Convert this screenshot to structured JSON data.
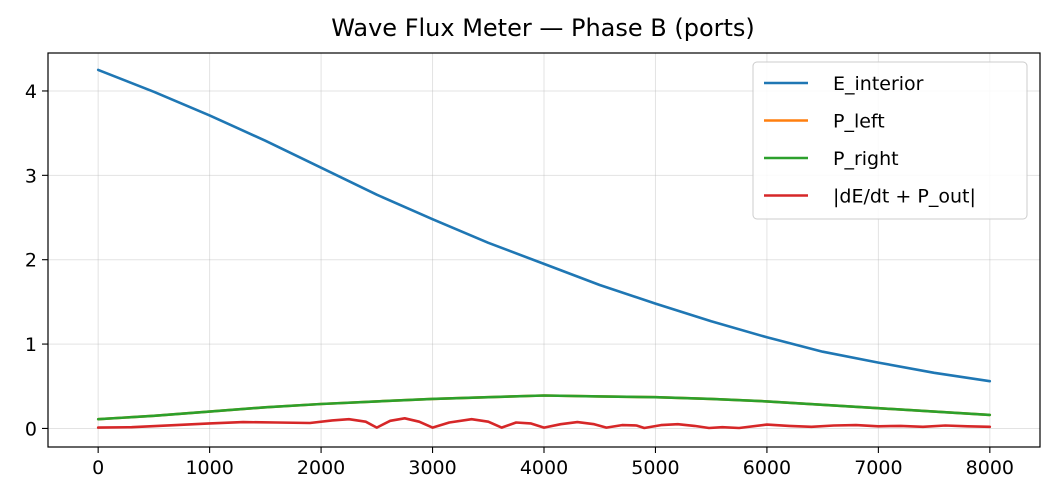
{
  "chart_data": {
    "type": "line",
    "title": "Wave Flux Meter — Phase B (ports)",
    "xlabel": "",
    "ylabel": "",
    "xlim": [
      -450,
      8450
    ],
    "ylim": [
      -0.22,
      4.45
    ],
    "x_ticks": [
      0,
      1000,
      2000,
      3000,
      4000,
      5000,
      6000,
      7000,
      8000
    ],
    "y_ticks": [
      0,
      1,
      2,
      3,
      4
    ],
    "grid": true,
    "legend_position": "top-right",
    "series": [
      {
        "name": "E_interior",
        "color": "#1f77b4",
        "x": [
          0,
          500,
          1000,
          1500,
          2000,
          2500,
          3000,
          3500,
          4000,
          4500,
          5000,
          5500,
          6000,
          6500,
          7000,
          7500,
          8000
        ],
        "y": [
          4.25,
          3.99,
          3.71,
          3.41,
          3.09,
          2.77,
          2.48,
          2.2,
          1.95,
          1.7,
          1.48,
          1.27,
          1.08,
          0.91,
          0.78,
          0.66,
          0.56
        ]
      },
      {
        "name": "P_left",
        "color": "#ff7f0e",
        "x": [
          0,
          500,
          1000,
          1500,
          2000,
          2500,
          3000,
          3500,
          4000,
          4500,
          5000,
          5500,
          6000,
          6500,
          7000,
          7500,
          8000
        ],
        "y": [
          0.11,
          0.15,
          0.2,
          0.25,
          0.29,
          0.32,
          0.35,
          0.37,
          0.39,
          0.38,
          0.37,
          0.35,
          0.32,
          0.28,
          0.24,
          0.2,
          0.16
        ]
      },
      {
        "name": "P_right",
        "color": "#2ca02c",
        "x": [
          0,
          500,
          1000,
          1500,
          2000,
          2500,
          3000,
          3500,
          4000,
          4500,
          5000,
          5500,
          6000,
          6500,
          7000,
          7500,
          8000
        ],
        "y": [
          0.11,
          0.15,
          0.2,
          0.25,
          0.29,
          0.32,
          0.35,
          0.37,
          0.39,
          0.38,
          0.37,
          0.35,
          0.32,
          0.28,
          0.24,
          0.2,
          0.16
        ]
      },
      {
        "name": "|dE/dt + P_out|",
        "color": "#d62728",
        "x": [
          0,
          300,
          700,
          1000,
          1300,
          1600,
          1900,
          2100,
          2250,
          2400,
          2500,
          2620,
          2750,
          2880,
          3000,
          3150,
          3350,
          3500,
          3620,
          3750,
          3880,
          4000,
          4150,
          4300,
          4450,
          4560,
          4700,
          4830,
          4900,
          5050,
          5200,
          5350,
          5480,
          5600,
          5750,
          6000,
          6200,
          6400,
          6600,
          6800,
          7000,
          7200,
          7400,
          7600,
          7800,
          8000
        ],
        "y": [
          0.01,
          0.015,
          0.04,
          0.06,
          0.075,
          0.07,
          0.065,
          0.095,
          0.11,
          0.08,
          0.01,
          0.09,
          0.12,
          0.08,
          0.01,
          0.07,
          0.11,
          0.08,
          0.01,
          0.07,
          0.06,
          0.01,
          0.05,
          0.075,
          0.05,
          0.01,
          0.04,
          0.035,
          0.005,
          0.04,
          0.05,
          0.03,
          0.005,
          0.015,
          0.005,
          0.045,
          0.03,
          0.02,
          0.035,
          0.04,
          0.025,
          0.03,
          0.02,
          0.035,
          0.025,
          0.02
        ]
      }
    ]
  }
}
